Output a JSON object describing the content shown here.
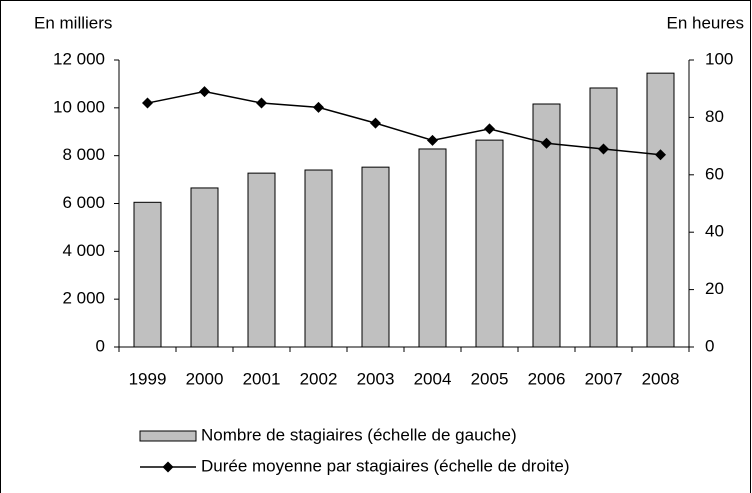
{
  "chart_data": {
    "type": "bar-line",
    "y_label": "En milliers",
    "y2_label": "En heures",
    "categories": [
      "1999",
      "2000",
      "2001",
      "2002",
      "2003",
      "2004",
      "2005",
      "2006",
      "2007",
      "2008"
    ],
    "series": [
      {
        "name": "Nombre de stagiaires (échelle de gauche)",
        "type": "bar",
        "color": "#c0c0c0",
        "axis": "y",
        "values": [
          6050,
          6650,
          7270,
          7400,
          7520,
          8280,
          8650,
          10160,
          10830,
          11450
        ]
      },
      {
        "name": "Durée moyenne par stagiaires (échelle de droite)",
        "type": "line",
        "color": "#000000",
        "axis": "y2",
        "values": [
          85,
          89,
          85,
          83.5,
          78,
          72,
          76,
          71,
          69,
          67
        ]
      }
    ],
    "ylim": [
      0,
      12000
    ],
    "yticks": [
      0,
      {
        "value": 2000,
        "label": "2 000"
      },
      {
        "value": 4000,
        "label": "4 000"
      },
      {
        "value": 6000,
        "label": "6 000"
      },
      {
        "value": 8000,
        "label": "8 000"
      },
      {
        "value": 10000,
        "label": "10 000"
      },
      {
        "value": 12000,
        "label": "12 000"
      }
    ],
    "y2lim": [
      0,
      100
    ],
    "y2ticks": [
      0,
      20,
      40,
      60,
      80,
      100
    ],
    "legend": "bottom",
    "grid": false
  }
}
